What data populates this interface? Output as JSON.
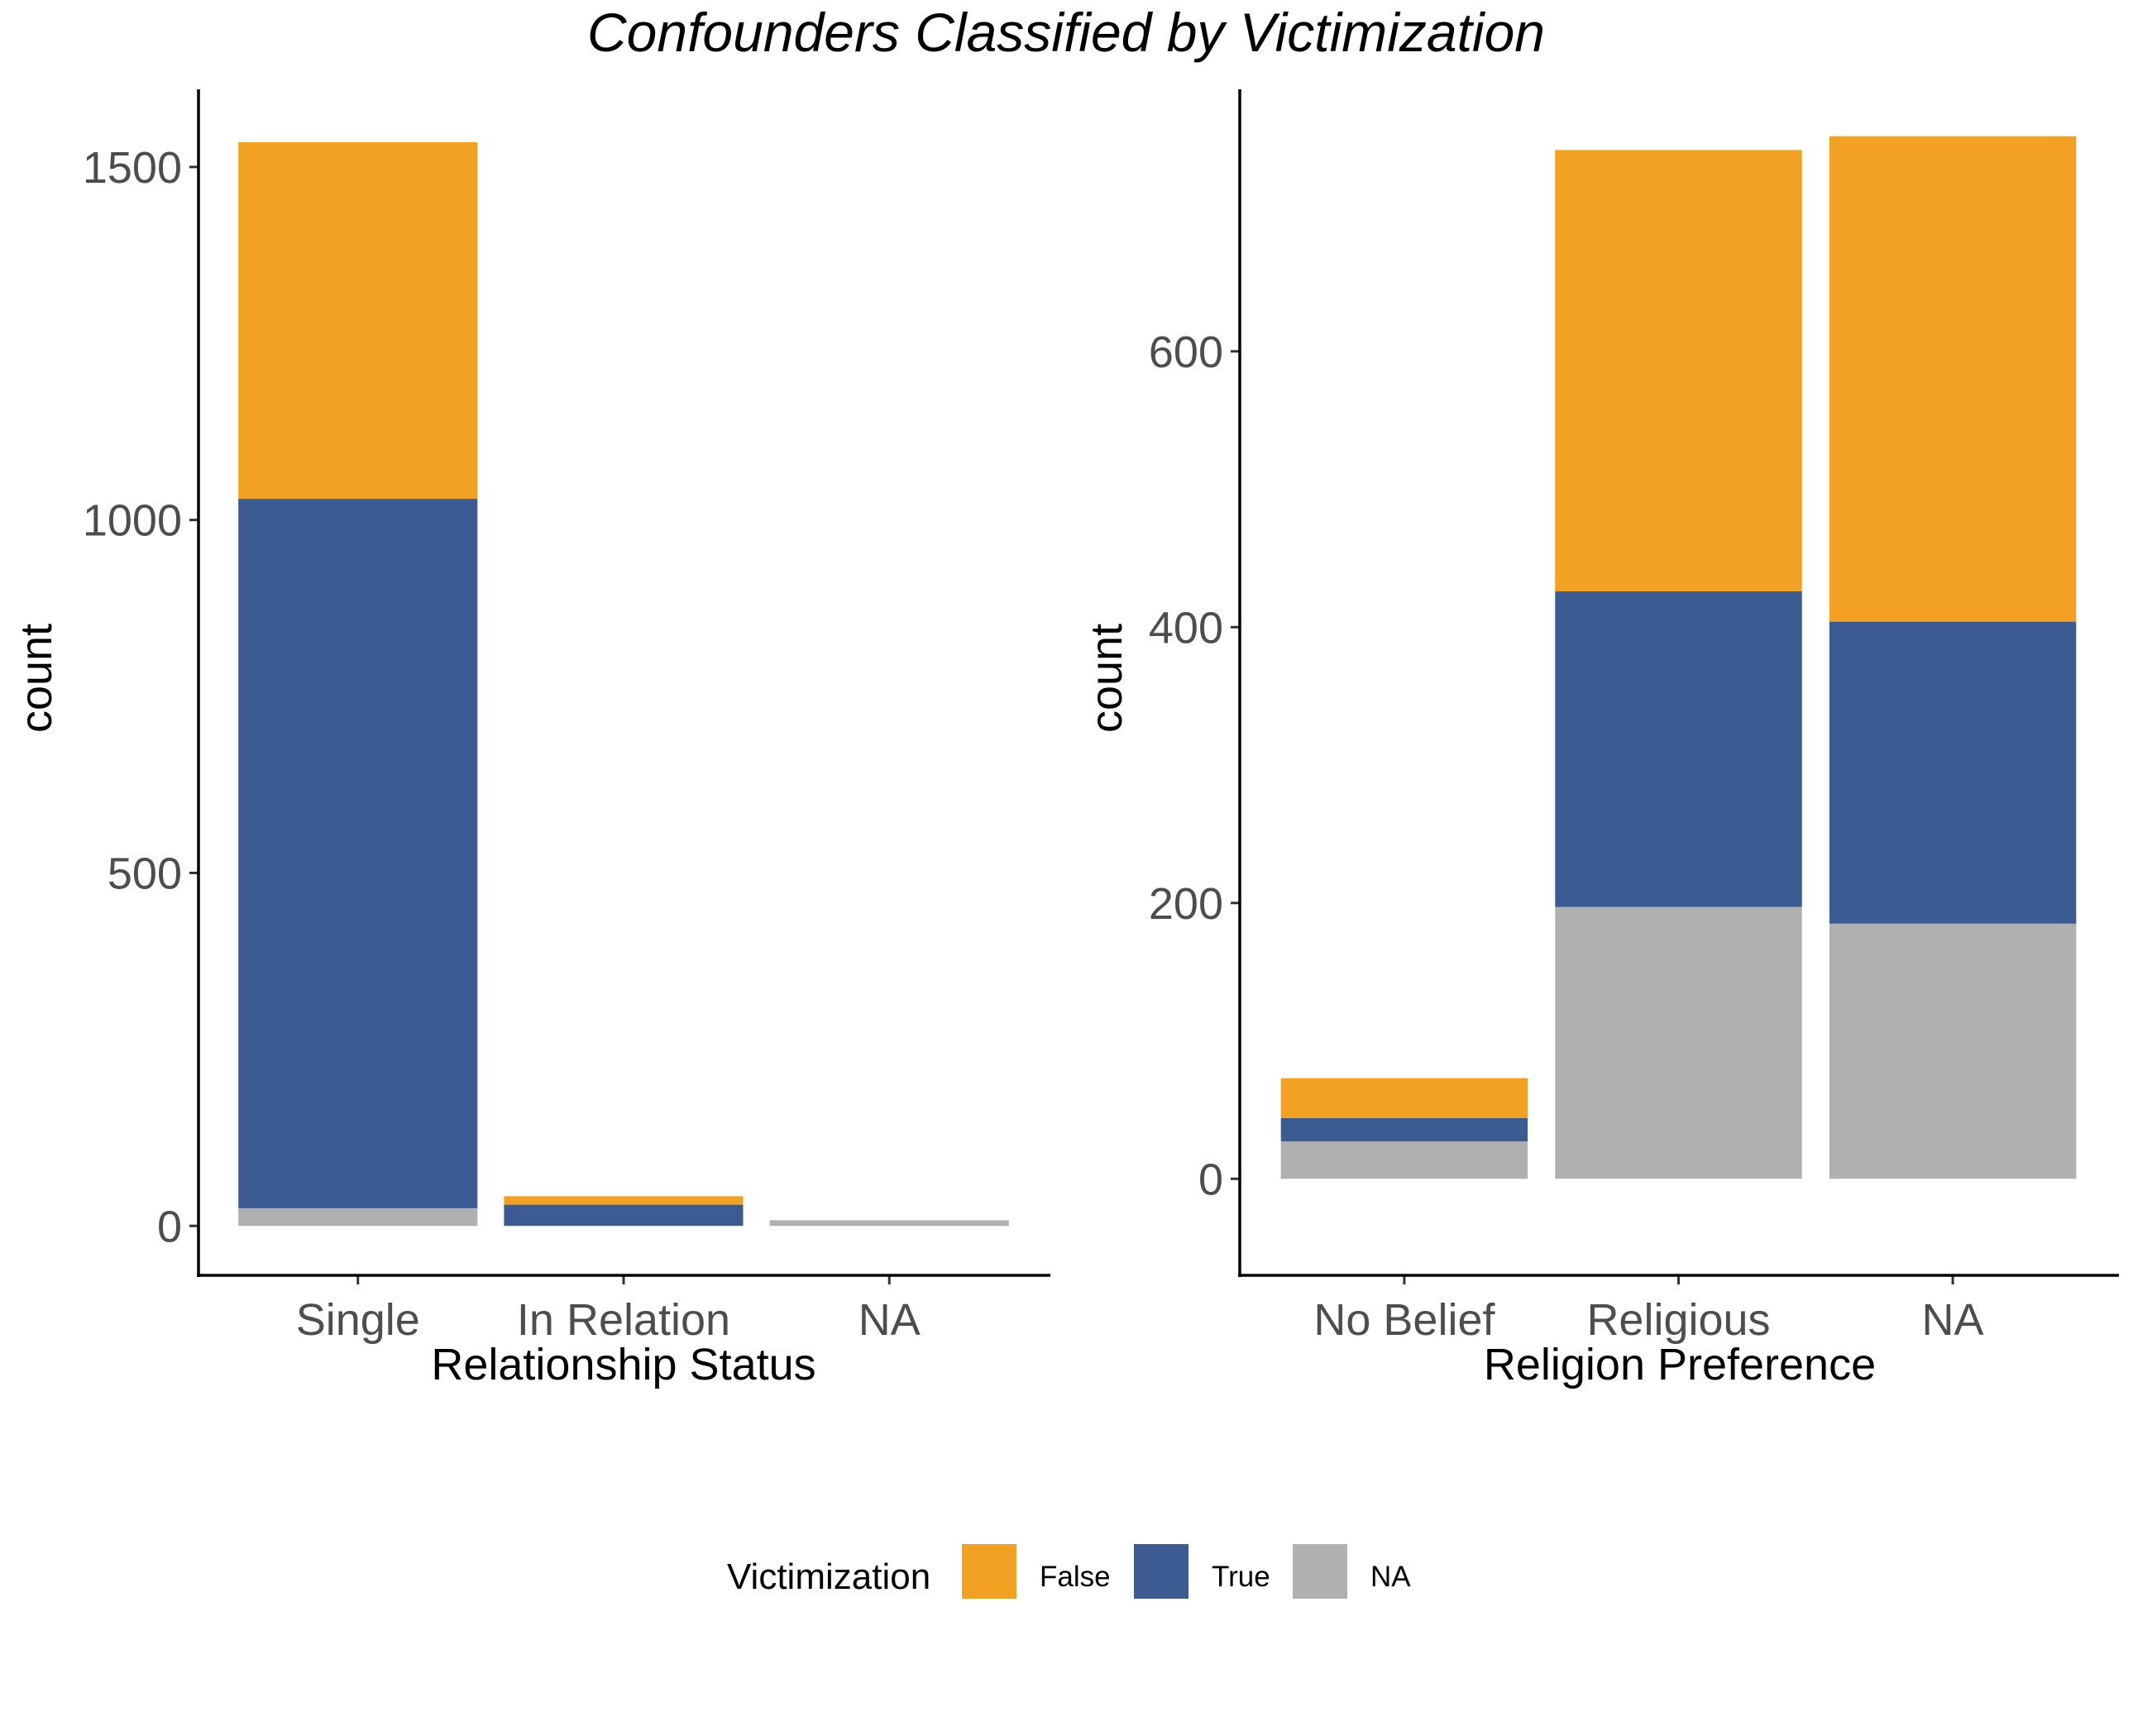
{
  "title": "Confounders Classified by Victimization",
  "legend": {
    "title": "Victimization",
    "items": [
      {
        "label": "False",
        "color": "#F2A122"
      },
      {
        "label": "True",
        "color": "#3B5B92"
      },
      {
        "label": "NA",
        "color": "#B0B0B0"
      }
    ]
  },
  "chart_data": [
    {
      "type": "bar",
      "stacked": true,
      "title": "",
      "xlabel": "Relationship Status",
      "ylabel": "count",
      "categories": [
        "Single",
        "In Relation",
        "NA"
      ],
      "ylim": [
        -70,
        1610
      ],
      "yticks": [
        0,
        500,
        1000,
        1500
      ],
      "series": [
        {
          "name": "NA",
          "color": "#B0B0B0",
          "values": [
            25,
            0,
            8
          ]
        },
        {
          "name": "True",
          "color": "#3B5B92",
          "values": [
            1005,
            30,
            0
          ]
        },
        {
          "name": "False",
          "color": "#F2A122",
          "values": [
            505,
            12,
            0
          ]
        }
      ]
    },
    {
      "type": "bar",
      "stacked": true,
      "title": "",
      "xlabel": "Religion Preference",
      "ylabel": "count",
      "categories": [
        "No Belief",
        "Religious",
        "NA"
      ],
      "ylim": [
        -70,
        790
      ],
      "yticks": [
        0,
        200,
        400,
        600
      ],
      "series": [
        {
          "name": "NA",
          "color": "#B0B0B0",
          "values": [
            27,
            197,
            185
          ]
        },
        {
          "name": "True",
          "color": "#3B5B92",
          "values": [
            17,
            229,
            219
          ]
        },
        {
          "name": "False",
          "color": "#F2A122",
          "values": [
            29,
            320,
            352
          ]
        }
      ]
    }
  ]
}
